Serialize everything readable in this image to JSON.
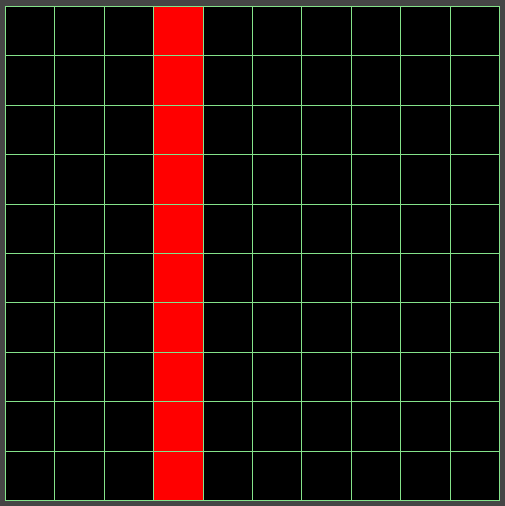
{
  "board": {
    "rows": 10,
    "columns": 10,
    "filled_cells": [
      [
        0,
        3
      ],
      [
        1,
        3
      ],
      [
        2,
        3
      ],
      [
        3,
        3
      ],
      [
        4,
        3
      ],
      [
        5,
        3
      ],
      [
        6,
        3
      ],
      [
        7,
        3
      ],
      [
        8,
        3
      ],
      [
        9,
        3
      ]
    ]
  },
  "colors": {
    "background": "#454545",
    "grid_line": "#84e28a",
    "empty_cell": "#000000",
    "filled_cell": "#ff0000"
  }
}
